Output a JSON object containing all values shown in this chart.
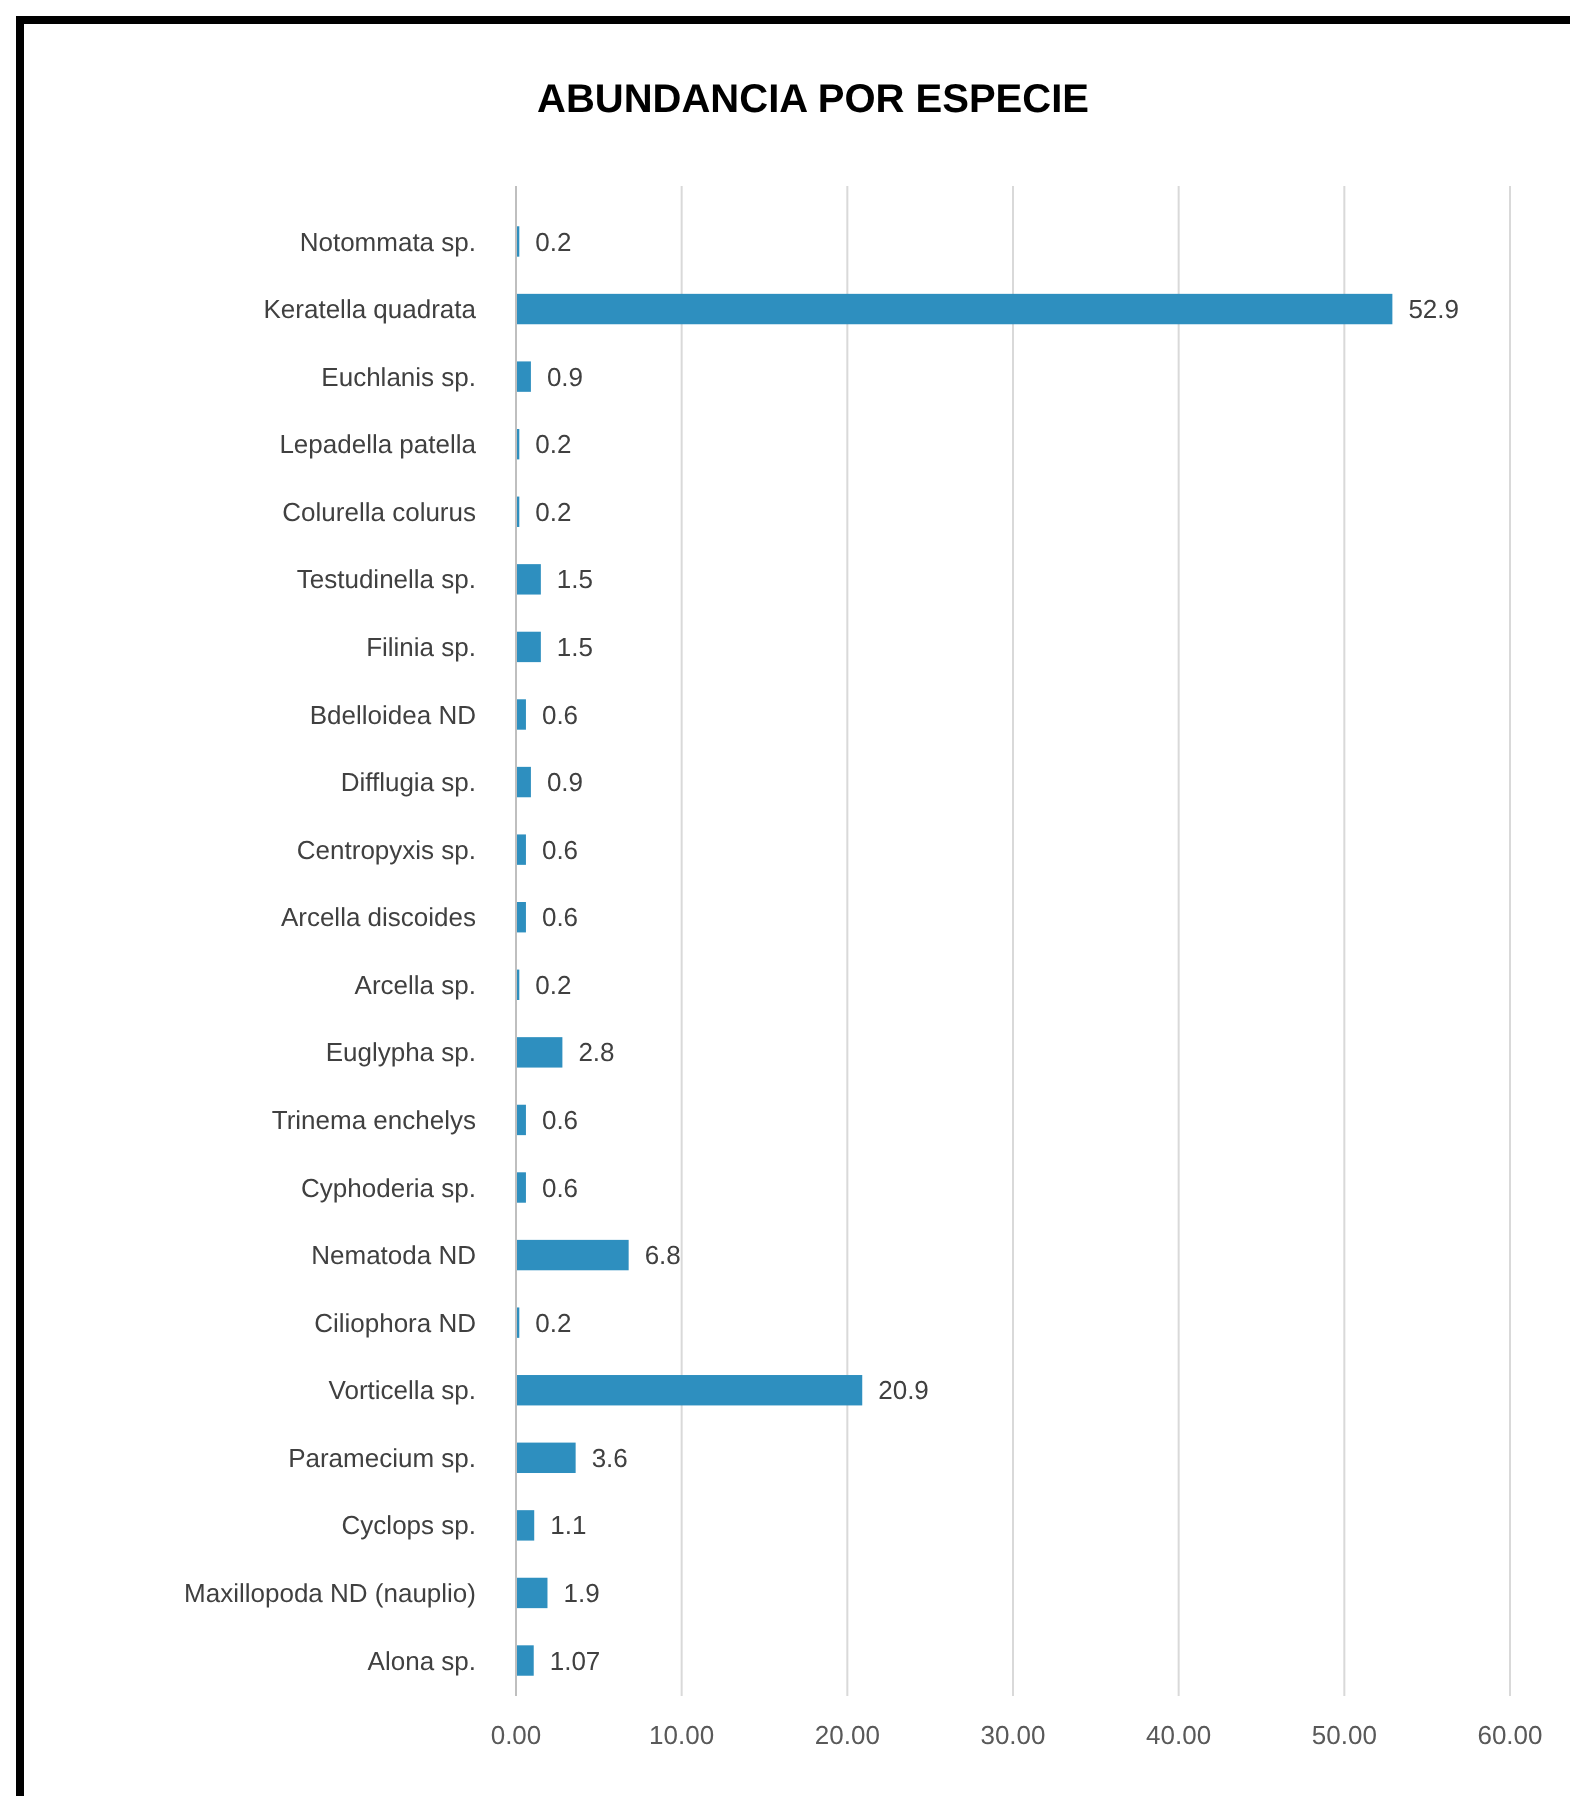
{
  "chart_data": {
    "type": "bar",
    "orientation": "horizontal",
    "title": "ABUNDANCIA POR ESPECIE",
    "categories": [
      "Notommata sp.",
      "Keratella quadrata",
      "Euchlanis sp.",
      "Lepadella patella",
      "Colurella colurus",
      "Testudinella sp.",
      "Filinia sp.",
      "Bdelloidea ND",
      "Difflugia sp.",
      "Centropyxis sp.",
      "Arcella discoides",
      "Arcella sp.",
      "Euglypha sp.",
      "Trinema enchelys",
      "Cyphoderia sp.",
      "Nematoda ND",
      "Ciliophora ND",
      "Vorticella sp.",
      "Paramecium sp.",
      "Cyclops sp.",
      "Maxillopoda ND (nauplio)",
      "Alona sp."
    ],
    "values": [
      0.2,
      52.9,
      0.9,
      0.2,
      0.2,
      1.5,
      1.5,
      0.6,
      0.9,
      0.6,
      0.6,
      0.2,
      2.8,
      0.6,
      0.6,
      6.8,
      0.2,
      20.9,
      3.6,
      1.1,
      1.9,
      1.07
    ],
    "color": "#2e8fbf",
    "xlim": [
      0,
      60
    ],
    "xticks": [
      {
        "value": 0,
        "label": "0.00"
      },
      {
        "value": 10,
        "label": "10.00"
      },
      {
        "value": 20,
        "label": "20.00"
      },
      {
        "value": 30,
        "label": "30.00"
      },
      {
        "value": 40,
        "label": "40.00"
      },
      {
        "value": 50,
        "label": "50.00"
      },
      {
        "value": 60,
        "label": "60.00"
      }
    ],
    "grid": "x",
    "data_labels": true
  }
}
